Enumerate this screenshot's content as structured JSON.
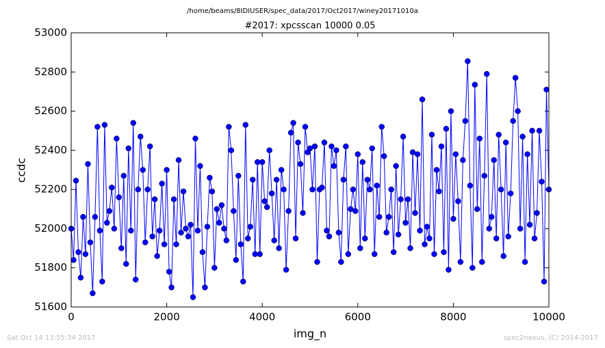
{
  "chart_data": {
    "type": "line",
    "path_title": "/home/beams/8IDIUSER/spec_data/2017/Oct2017/winey20171010a",
    "title": "#2017: xpcsscan 10000 0.05",
    "x_label": "img_n",
    "y_label": "ccdc",
    "footer_left": "Sat Oct 14 13:55:34 2017",
    "footer_right": "spec2nexus, (C) 2014-2017",
    "xlim": [
      0,
      10000
    ],
    "xticks": [
      0,
      2000,
      4000,
      6000,
      8000,
      10000
    ],
    "ylim": [
      51600,
      53000
    ],
    "yticks": [
      51600,
      51800,
      52000,
      52200,
      52400,
      52600,
      52800,
      53000
    ],
    "x": [
      0,
      50,
      100,
      150,
      200,
      250,
      300,
      350,
      400,
      450,
      500,
      550,
      600,
      650,
      700,
      750,
      800,
      850,
      900,
      950,
      1000,
      1050,
      1100,
      1150,
      1200,
      1250,
      1300,
      1350,
      1400,
      1450,
      1500,
      1550,
      1600,
      1650,
      1700,
      1750,
      1800,
      1850,
      1900,
      1950,
      2000,
      2050,
      2100,
      2150,
      2200,
      2250,
      2300,
      2350,
      2400,
      2450,
      2500,
      2550,
      2600,
      2650,
      2700,
      2750,
      2800,
      2850,
      2900,
      2950,
      3000,
      3050,
      3100,
      3150,
      3200,
      3250,
      3300,
      3350,
      3400,
      3450,
      3500,
      3550,
      3600,
      3650,
      3700,
      3750,
      3800,
      3850,
      3900,
      3950,
      4000,
      4050,
      4100,
      4150,
      4200,
      4250,
      4300,
      4350,
      4400,
      4450,
      4500,
      4550,
      4600,
      4650,
      4700,
      4750,
      4800,
      4850,
      4900,
      4950,
      5000,
      5050,
      5100,
      5150,
      5200,
      5250,
      5300,
      5350,
      5400,
      5450,
      5500,
      5550,
      5600,
      5650,
      5700,
      5750,
      5800,
      5850,
      5900,
      5950,
      6000,
      6050,
      6100,
      6150,
      6200,
      6250,
      6300,
      6350,
      6400,
      6450,
      6500,
      6550,
      6600,
      6650,
      6700,
      6750,
      6800,
      6850,
      6900,
      6950,
      7000,
      7050,
      7100,
      7150,
      7200,
      7250,
      7300,
      7350,
      7400,
      7450,
      7500,
      7550,
      7600,
      7650,
      7700,
      7750,
      7800,
      7850,
      7900,
      7950,
      8000,
      8050,
      8100,
      8150,
      8200,
      8250,
      8300,
      8350,
      8400,
      8450,
      8500,
      8550,
      8600,
      8650,
      8700,
      8750,
      8800,
      8850,
      8900,
      8950,
      9000,
      9050,
      9100,
      9150,
      9200,
      9250,
      9300,
      9350,
      9400,
      9450,
      9500,
      9550,
      9600,
      9650,
      9700,
      9750,
      9800,
      9850,
      9900,
      9950,
      10000
    ],
    "series": [
      {
        "name": "ccdc",
        "color": "#0000ff",
        "values": [
          52000,
          51840,
          52245,
          51880,
          51750,
          52060,
          51870,
          52330,
          51930,
          51670,
          52060,
          52520,
          51990,
          51730,
          52530,
          52030,
          52090,
          52210,
          52000,
          52460,
          52160,
          51900,
          52270,
          51820,
          52410,
          51990,
          52540,
          51740,
          52200,
          52470,
          52300,
          51930,
          52200,
          52420,
          51960,
          52150,
          51860,
          51990,
          52230,
          51920,
          52300,
          51780,
          51700,
          52150,
          51920,
          52350,
          51980,
          52190,
          52000,
          51960,
          52020,
          51650,
          52460,
          51990,
          52320,
          51880,
          51700,
          52010,
          52260,
          52190,
          51800,
          52100,
          52030,
          52120,
          52000,
          51940,
          52520,
          52400,
          52090,
          51840,
          52270,
          51920,
          51730,
          52530,
          51950,
          52010,
          52250,
          51870,
          52340,
          51870,
          52340,
          52140,
          52110,
          52400,
          52180,
          51940,
          52250,
          51900,
          52300,
          52200,
          51790,
          52090,
          52490,
          52540,
          51950,
          52440,
          52330,
          52080,
          52520,
          52390,
          52410,
          52200,
          52420,
          51830,
          52200,
          52210,
          52440,
          51990,
          51960,
          52420,
          52320,
          52400,
          51980,
          51830,
          52250,
          52420,
          51870,
          52100,
          52200,
          52090,
          52380,
          51900,
          52340,
          51950,
          52250,
          52200,
          52410,
          51870,
          52220,
          52060,
          52520,
          52370,
          51980,
          52060,
          52200,
          51880,
          52320,
          51970,
          52150,
          52470,
          52030,
          52150,
          51900,
          52390,
          52080,
          52380,
          51990,
          52660,
          51920,
          52010,
          51950,
          52480,
          51870,
          52300,
          52190,
          52420,
          51880,
          52510,
          51790,
          52600,
          52050,
          52380,
          52140,
          51830,
          52350,
          52550,
          52855,
          52220,
          51800,
          52735,
          52100,
          52460,
          51830,
          52270,
          52790,
          52000,
          52060,
          52350,
          51950,
          52480,
          52200,
          51860,
          52440,
          51960,
          52180,
          52550,
          52770,
          52600,
          52000,
          52470,
          51830,
          52380,
          52020,
          52500,
          51950,
          52080,
          52500,
          52240,
          51730,
          52710,
          52200
        ]
      }
    ]
  }
}
